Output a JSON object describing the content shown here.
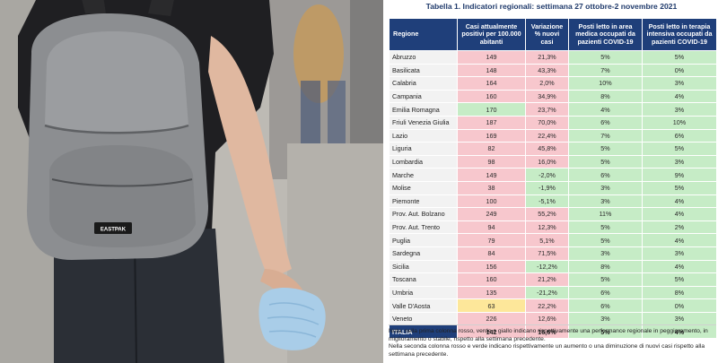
{
  "photo": {
    "bag_brand": "EASTPAK"
  },
  "table": {
    "title": "Tabella 1. Indicatori regionali: settimana 27 ottobre-2 novembre 2021",
    "headers": {
      "region": "Regione",
      "cases": "Casi attualmente positivi per 100.000 abitanti",
      "variation": "Variazione % nuovi casi",
      "beds_area": "Posti letto in area medica occupati da pazienti COVID-19",
      "beds_ti": "Posti letto in terapia intensiva occupati da pazienti COVID-19"
    },
    "colors": {
      "red": "#f7c7cd",
      "green": "#c6ecc6",
      "yellow": "#fde79a",
      "header": "#1f3f7a"
    },
    "rows": [
      {
        "region": "Abruzzo",
        "cases": "149",
        "variation": "21,3%",
        "beds_area": "5%",
        "beds_ti": "5%",
        "cases_color": "red",
        "var_color": "red"
      },
      {
        "region": "Basilicata",
        "cases": "148",
        "variation": "43,3%",
        "beds_area": "7%",
        "beds_ti": "0%",
        "cases_color": "red",
        "var_color": "red"
      },
      {
        "region": "Calabria",
        "cases": "164",
        "variation": "2,0%",
        "beds_area": "10%",
        "beds_ti": "3%",
        "cases_color": "red",
        "var_color": "red"
      },
      {
        "region": "Campania",
        "cases": "160",
        "variation": "34,9%",
        "beds_area": "8%",
        "beds_ti": "4%",
        "cases_color": "red",
        "var_color": "red"
      },
      {
        "region": "Emilia Romagna",
        "cases": "170",
        "variation": "23,7%",
        "beds_area": "4%",
        "beds_ti": "3%",
        "cases_color": "green",
        "var_color": "red"
      },
      {
        "region": "Friuli Venezia Giulia",
        "cases": "187",
        "variation": "70,0%",
        "beds_area": "6%",
        "beds_ti": "10%",
        "cases_color": "red",
        "var_color": "red"
      },
      {
        "region": "Lazio",
        "cases": "169",
        "variation": "22,4%",
        "beds_area": "7%",
        "beds_ti": "6%",
        "cases_color": "red",
        "var_color": "red"
      },
      {
        "region": "Liguria",
        "cases": "82",
        "variation": "45,8%",
        "beds_area": "5%",
        "beds_ti": "5%",
        "cases_color": "red",
        "var_color": "red"
      },
      {
        "region": "Lombardia",
        "cases": "98",
        "variation": "16,0%",
        "beds_area": "5%",
        "beds_ti": "3%",
        "cases_color": "red",
        "var_color": "red"
      },
      {
        "region": "Marche",
        "cases": "149",
        "variation": "-2,0%",
        "beds_area": "6%",
        "beds_ti": "9%",
        "cases_color": "red",
        "var_color": "green"
      },
      {
        "region": "Molise",
        "cases": "38",
        "variation": "-1,9%",
        "beds_area": "3%",
        "beds_ti": "5%",
        "cases_color": "red",
        "var_color": "green"
      },
      {
        "region": "Piemonte",
        "cases": "100",
        "variation": "-5,1%",
        "beds_area": "3%",
        "beds_ti": "4%",
        "cases_color": "red",
        "var_color": "green"
      },
      {
        "region": "Prov. Aut. Bolzano",
        "cases": "249",
        "variation": "55,2%",
        "beds_area": "11%",
        "beds_ti": "4%",
        "cases_color": "red",
        "var_color": "red"
      },
      {
        "region": "Prov. Aut. Trento",
        "cases": "94",
        "variation": "12,3%",
        "beds_area": "5%",
        "beds_ti": "2%",
        "cases_color": "red",
        "var_color": "red"
      },
      {
        "region": "Puglia",
        "cases": "79",
        "variation": "5,1%",
        "beds_area": "5%",
        "beds_ti": "4%",
        "cases_color": "red",
        "var_color": "red"
      },
      {
        "region": "Sardegna",
        "cases": "84",
        "variation": "71,5%",
        "beds_area": "3%",
        "beds_ti": "3%",
        "cases_color": "red",
        "var_color": "red"
      },
      {
        "region": "Sicilia",
        "cases": "156",
        "variation": "-12,2%",
        "beds_area": "8%",
        "beds_ti": "4%",
        "cases_color": "red",
        "var_color": "green"
      },
      {
        "region": "Toscana",
        "cases": "160",
        "variation": "21,2%",
        "beds_area": "5%",
        "beds_ti": "5%",
        "cases_color": "red",
        "var_color": "red"
      },
      {
        "region": "Umbria",
        "cases": "135",
        "variation": "-21,2%",
        "beds_area": "6%",
        "beds_ti": "8%",
        "cases_color": "red",
        "var_color": "green"
      },
      {
        "region": "Valle D'Aosta",
        "cases": "63",
        "variation": "22,2%",
        "beds_area": "6%",
        "beds_ti": "0%",
        "cases_color": "yellow",
        "var_color": "red"
      },
      {
        "region": "Veneto",
        "cases": "226",
        "variation": "12,6%",
        "beds_area": "3%",
        "beds_ti": "3%",
        "cases_color": "red",
        "var_color": "red"
      }
    ],
    "total": {
      "region": "ITALIA",
      "cases": "142",
      "variation": "16,6%",
      "beds_area": "5%",
      "beds_ti": "4%"
    }
  },
  "note": {
    "line1": "Nota: nella prima colonna rosso, verde e giallo indicano rispettivamente una performance regionale in peggioramento, in miglioramento o stabile, rispetto alla settimana precedente.",
    "line2": "Nella seconda colonna rosso e verde indicano rispettivamente un aumento o una diminuzione di nuovi casi rispetto alla settimana precedente."
  }
}
